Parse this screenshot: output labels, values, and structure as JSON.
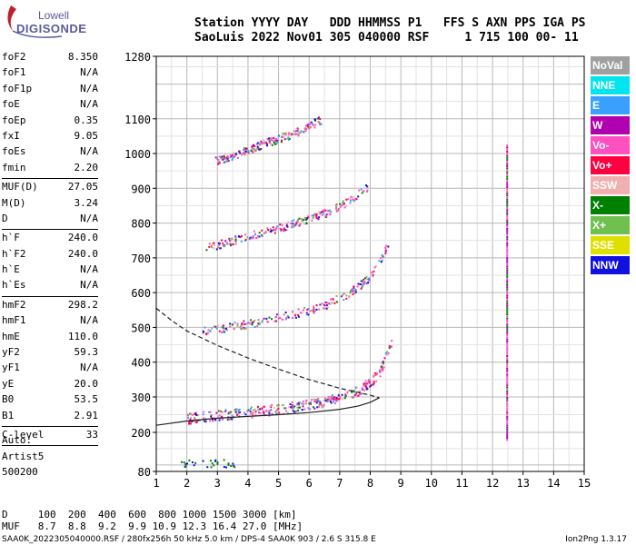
{
  "logo": {
    "line1": "Lowell",
    "line2": "DIGISONDE"
  },
  "header": {
    "line1": "Station YYYY DAY   DDD HHMMSS P1   FFS S AXN PPS IGA PS",
    "line2": "SaoLuis 2022 Nov01 305 040000 RSF     1 715 100 00- 11"
  },
  "params": [
    {
      "label": "foF2",
      "value": "8.350"
    },
    {
      "label": "foF1",
      "value": "N/A"
    },
    {
      "label": "foF1p",
      "value": "N/A"
    },
    {
      "label": "foE",
      "value": "N/A"
    },
    {
      "label": "foEp",
      "value": "0.35"
    },
    {
      "label": "fxI",
      "value": "9.05"
    },
    {
      "label": "foEs",
      "value": "N/A"
    },
    {
      "label": "fmin",
      "value": "2.20"
    },
    {
      "sep": true
    },
    {
      "label": "MUF(D)",
      "value": "27.05"
    },
    {
      "label": "M(D)",
      "value": "3.24"
    },
    {
      "label": "D",
      "value": "N/A"
    },
    {
      "sep": true
    },
    {
      "label": "h`F",
      "value": "240.0"
    },
    {
      "label": "h`F2",
      "value": "240.0"
    },
    {
      "label": "h`E",
      "value": "N/A"
    },
    {
      "label": "h`Es",
      "value": "N/A"
    },
    {
      "sep": true
    },
    {
      "label": "hmF2",
      "value": "298.2"
    },
    {
      "label": "hmF1",
      "value": "N/A"
    },
    {
      "label": "hmE",
      "value": "110.0"
    },
    {
      "label": "yF2",
      "value": "59.3"
    },
    {
      "label": "yF1",
      "value": "N/A"
    },
    {
      "label": "yE",
      "value": "20.0"
    },
    {
      "label": "B0",
      "value": "53.5"
    },
    {
      "label": "B1",
      "value": "2.91"
    },
    {
      "sep": true
    },
    {
      "label": "C-level",
      "value": "33"
    },
    {
      "sep": true
    }
  ],
  "auto": {
    "line1": "Auto:",
    "line2": "Artist5",
    "line3": "500200"
  },
  "legend": [
    {
      "label": "NoVal",
      "color": "#a0a0a0"
    },
    {
      "label": "NNE",
      "color": "#00e5ee"
    },
    {
      "label": "E",
      "color": "#3aa0ff"
    },
    {
      "label": "W",
      "color": "#b000b0"
    },
    {
      "label": "Vo-",
      "color": "#ff50c0"
    },
    {
      "label": "Vo+",
      "color": "#ff0040"
    },
    {
      "label": "SSW",
      "color": "#f0b0b0"
    },
    {
      "label": "X-",
      "color": "#008000"
    },
    {
      "label": "X+",
      "color": "#70c050"
    },
    {
      "label": "SSE",
      "color": "#e0e000"
    },
    {
      "label": "NNW",
      "color": "#1010e0"
    }
  ],
  "muf_table": {
    "line1": "D     100  200  400  600  800 1000 1500 3000 [km]",
    "line2": "MUF   8.7  8.8  9.2  9.9 10.9 12.3 16.4 27.0 [MHz]"
  },
  "footer": {
    "left": "SAA0K_2022305040000.RSF / 280fx256h 50 kHz 5.0 km / DPS-4 SAA0K 903 / 2.6 S 315.8 E",
    "right": "Ion2Png 1.3.17"
  },
  "chart_data": {
    "type": "scatter",
    "title": "",
    "xlabel": "",
    "ylabel": "",
    "xlim": [
      1,
      15
    ],
    "ylim": [
      80,
      1280
    ],
    "x_ticks": [
      1,
      2,
      3,
      4,
      5,
      6,
      7,
      8,
      9,
      10,
      11,
      12,
      13,
      14,
      15
    ],
    "y_ticks": [
      80,
      200,
      300,
      400,
      500,
      600,
      700,
      800,
      900,
      1000,
      1100,
      1280
    ],
    "y_scale": "ionogram (compressed at low heights)",
    "grid": true,
    "echo_traces": [
      {
        "name": "F-layer 1st hop",
        "x": [
          2.0,
          3.0,
          4.0,
          5.0,
          6.0,
          7.0,
          7.6,
          8.0,
          8.3,
          8.5,
          8.7
        ],
        "y": [
          240,
          250,
          258,
          268,
          280,
          298,
          320,
          345,
          375,
          420,
          470
        ]
      },
      {
        "name": "F-layer 2nd hop",
        "x": [
          2.5,
          3.5,
          4.5,
          5.5,
          6.5,
          7.3,
          7.9,
          8.3,
          8.6
        ],
        "y": [
          490,
          505,
          520,
          540,
          565,
          600,
          640,
          690,
          750
        ]
      },
      {
        "name": "F-layer 3rd hop",
        "x": [
          2.6,
          3.5,
          4.5,
          5.5,
          6.5,
          7.3,
          7.9
        ],
        "y": [
          730,
          752,
          775,
          800,
          830,
          865,
          905
        ]
      },
      {
        "name": "F-layer 4th hop",
        "x": [
          2.9,
          3.6,
          4.5,
          5.5,
          6.4
        ],
        "y": [
          980,
          1000,
          1030,
          1060,
          1100
        ]
      }
    ],
    "curves": [
      {
        "name": "solid profile",
        "x": [
          1.0,
          2.0,
          3.0,
          4.0,
          5.0,
          6.0,
          7.0,
          7.6,
          8.0,
          8.3
        ],
        "y": [
          220,
          232,
          240,
          245,
          250,
          256,
          265,
          274,
          285,
          298
        ]
      },
      {
        "name": "dashed profile",
        "x": [
          1.0,
          1.5,
          2.0,
          3.0,
          4.0,
          5.0,
          6.0,
          7.0,
          8.0,
          8.3
        ],
        "y": [
          555,
          520,
          490,
          448,
          412,
          380,
          350,
          325,
          305,
          298
        ]
      }
    ],
    "vertical_echo": {
      "x": 12.45,
      "y": [
        180,
        1030
      ]
    }
  }
}
